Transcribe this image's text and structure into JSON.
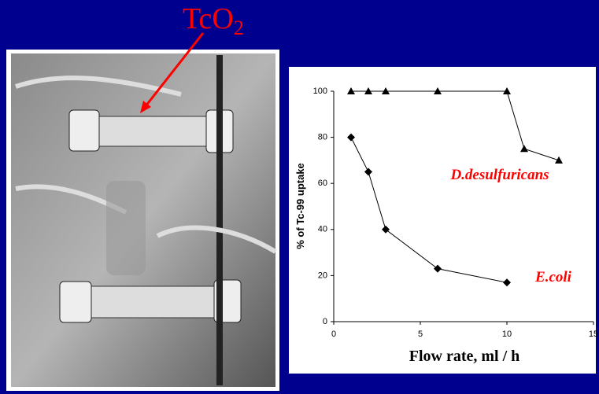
{
  "annotation": {
    "text": "TcO",
    "subscript": "2"
  },
  "chart_data": {
    "type": "line",
    "xlabel": "Flow  rate, ml / h",
    "ylabel": "% of Tc-99 uptake",
    "xlim": [
      0,
      15
    ],
    "xticks": [
      0,
      5,
      10,
      15
    ],
    "ylim": [
      0,
      100
    ],
    "yticks": [
      0,
      20,
      40,
      60,
      80,
      100
    ],
    "series": [
      {
        "name": "D.desulfuricans",
        "color": "#000000",
        "marker": "triangle",
        "label_color": "#ff0000",
        "x": [
          1,
          2,
          3,
          6,
          10,
          11,
          13
        ],
        "values": [
          100,
          100,
          100,
          100,
          100,
          75,
          70
        ]
      },
      {
        "name": "E.coli",
        "color": "#000000",
        "marker": "diamond",
        "label_color": "#ff0000",
        "x": [
          1,
          2,
          3,
          6,
          10
        ],
        "values": [
          80,
          65,
          40,
          23,
          17
        ]
      }
    ]
  }
}
